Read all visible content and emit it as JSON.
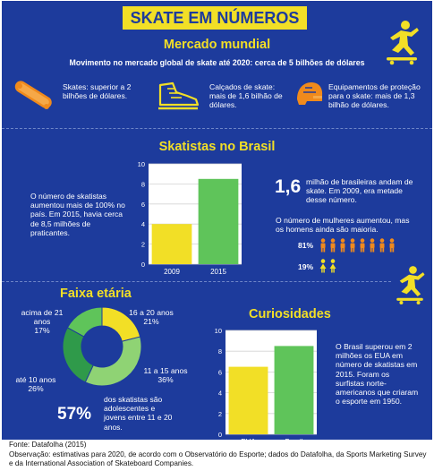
{
  "title": "SKATE EM NÚMEROS",
  "market": {
    "heading": "Mercado mundial",
    "subtitle": "Movimento no mercado global de skate até 2020: cerca de 5 bilhões de dólares",
    "items": [
      {
        "icon": "skateboard-icon",
        "text": "Skates: superior a 2 bilhões de dólares."
      },
      {
        "icon": "sneaker-icon",
        "text": "Calçados de skate: mais de 1,6 bilhão de dólares."
      },
      {
        "icon": "helmet-icon",
        "text": "Equipamentos de proteção para o skate:  mais de 1,3 bilhão de dólares."
      }
    ]
  },
  "brasil": {
    "heading": "Skatistas no Brasil",
    "left_text": "O número de skatistas aumentou mais de 100% no país. Em 2015, havia cerca de 8,5 milhões de praticantes.",
    "big_number": "1,6",
    "big_text": "milhão de brasileiras andam de skate. Em 2009, era metade desse número.",
    "gender_text": "O número de mulheres aumentou, mas os homens ainda são maioria.",
    "men_pct": "81%",
    "women_pct": "19%",
    "men_value": 81,
    "women_value": 19
  },
  "faixa": {
    "heading": "Faixa etária",
    "big_pct": "57%",
    "big_text": "dos skatistas são adolescentes e jovens entre 11 e 20 anos.",
    "labels": [
      {
        "range": "acima de 21 anos",
        "pct": "17%"
      },
      {
        "range": "16 a 20 anos",
        "pct": "21%"
      },
      {
        "range": "11 a 15 anos",
        "pct": "36%"
      },
      {
        "range": "até 10 anos",
        "pct": "26%"
      }
    ]
  },
  "curiosidades": {
    "heading": "Curiosidades",
    "text": "O Brasil superou em 2 milhões os EUA em número de skatistas em 2015. Foram os surfistas norte-americanos que criaram o esporte em 1950."
  },
  "footer": {
    "source": "Fonte: Datafolha (2015)",
    "note": "Observação: estimativas para 2020, de acordo com o Observatório do Esporte; dados do Datafolha, da Sports Marketing Survey e da International Association of Skateboard Companies."
  },
  "colors": {
    "background": "#1d3b9c",
    "accent_yellow": "#f2df26",
    "green": "#5fc45a",
    "orange": "#f08a1c",
    "light_green": "#8fd374",
    "dark_green": "#2f9a4a"
  },
  "chart_data": [
    {
      "type": "bar",
      "title": "",
      "categories": [
        "2009",
        "2015"
      ],
      "values": [
        4,
        8.5
      ],
      "ylim": [
        0,
        10
      ],
      "yticks": [
        "0",
        "2",
        "4",
        "6",
        "8",
        "10"
      ],
      "colors": [
        "#f2df26",
        "#5fc45a"
      ],
      "grid": true
    },
    {
      "type": "pie",
      "title": "Faixa etária",
      "categories": [
        "16 a 20 anos",
        "11 a 15 anos",
        "até 10 anos",
        "acima de 21 anos"
      ],
      "values": [
        21,
        36,
        26,
        17
      ],
      "colors": [
        "#f2df26",
        "#8fd374",
        "#2f9a4a",
        "#5fc45a"
      ]
    },
    {
      "type": "bar",
      "title": "",
      "categories": [
        "EUA",
        "Brasil"
      ],
      "values": [
        6.5,
        8.5
      ],
      "ylim": [
        0,
        10
      ],
      "yticks": [
        "0",
        "2",
        "4",
        "6",
        "8",
        "10"
      ],
      "colors": [
        "#f2df26",
        "#5fc45a"
      ],
      "grid": true
    }
  ]
}
